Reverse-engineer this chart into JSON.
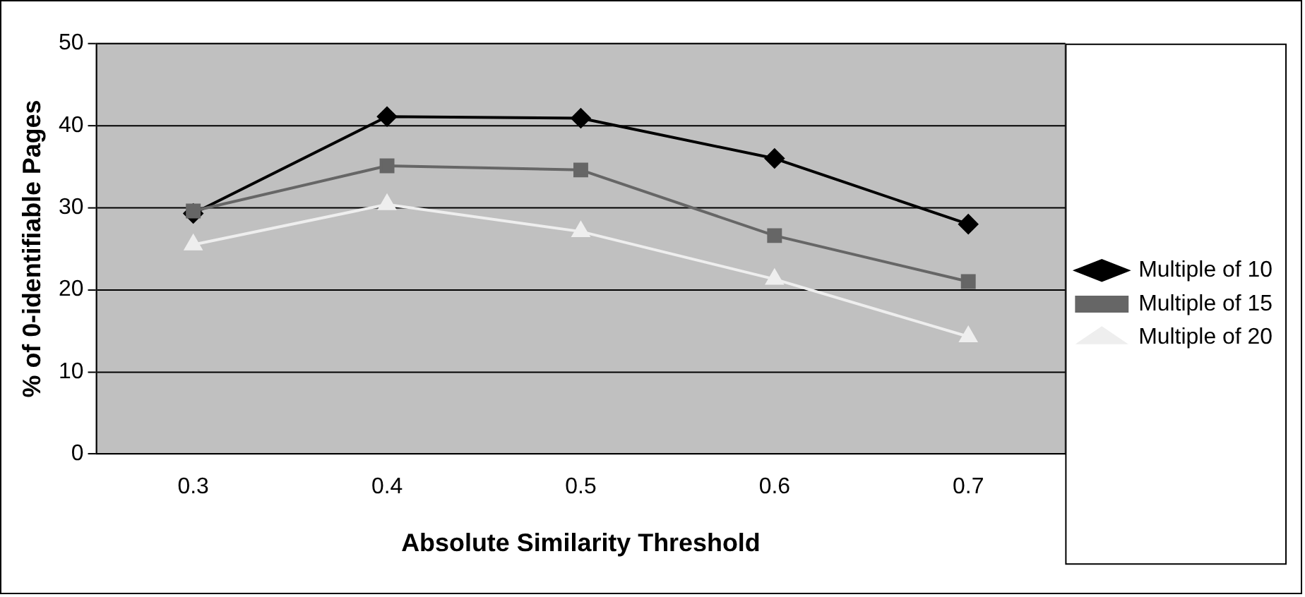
{
  "chart_data": {
    "type": "line",
    "xlabel": "Absolute Similarity Threshold",
    "ylabel": "% of 0-identifiable Pages",
    "categories": [
      "0.3",
      "0.4",
      "0.5",
      "0.6",
      "0.7"
    ],
    "series": [
      {
        "name": "Multiple of 10",
        "color": "#000000",
        "marker": "diamond",
        "values": [
          29.3,
          41.1,
          40.9,
          36,
          28
        ]
      },
      {
        "name": "Multiple of 15",
        "color": "#666666",
        "marker": "square",
        "values": [
          29.6,
          35.1,
          34.6,
          26.6,
          21
        ]
      },
      {
        "name": "Multiple of 20",
        "color": "#eeeeee",
        "marker": "triangle",
        "values": [
          25.5,
          30.4,
          27.1,
          21.3,
          14.3
        ]
      }
    ],
    "ylim": [
      0,
      50
    ],
    "yticks": [
      0,
      10,
      20,
      30,
      40,
      50
    ],
    "grid": "y",
    "legend": "right",
    "line_style": "solid"
  }
}
